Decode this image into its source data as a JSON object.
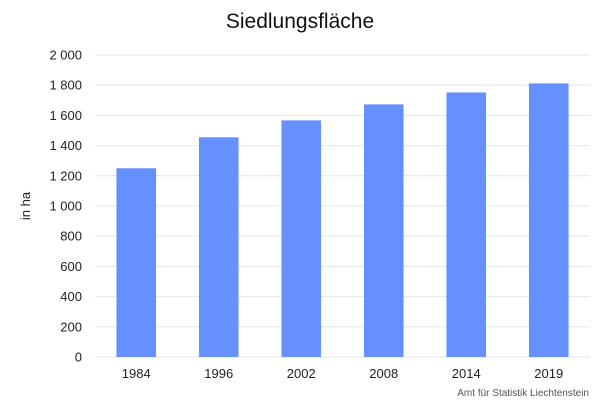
{
  "chart_data": {
    "type": "bar",
    "title": "Siedlungsfläche",
    "xlabel": "",
    "ylabel": "in ha",
    "categories": [
      "1984",
      "1996",
      "2002",
      "2008",
      "2014",
      "2019"
    ],
    "values": [
      1250,
      1455,
      1567,
      1673,
      1752,
      1812
    ],
    "ylim": [
      0,
      2000
    ],
    "yticks": [
      0,
      200,
      400,
      600,
      800,
      1000,
      1200,
      1400,
      1600,
      1800,
      2000
    ],
    "ytick_labels": [
      "0",
      "200",
      "400",
      "600",
      "800",
      "1 000",
      "1 200",
      "1 400",
      "1 600",
      "1 800",
      "2 000"
    ],
    "grid": true,
    "legend": "none",
    "bar_color": "#6690ff",
    "grid_color": "#e6e6e6"
  },
  "credit": "Amt für Statistik Liechtenstein"
}
